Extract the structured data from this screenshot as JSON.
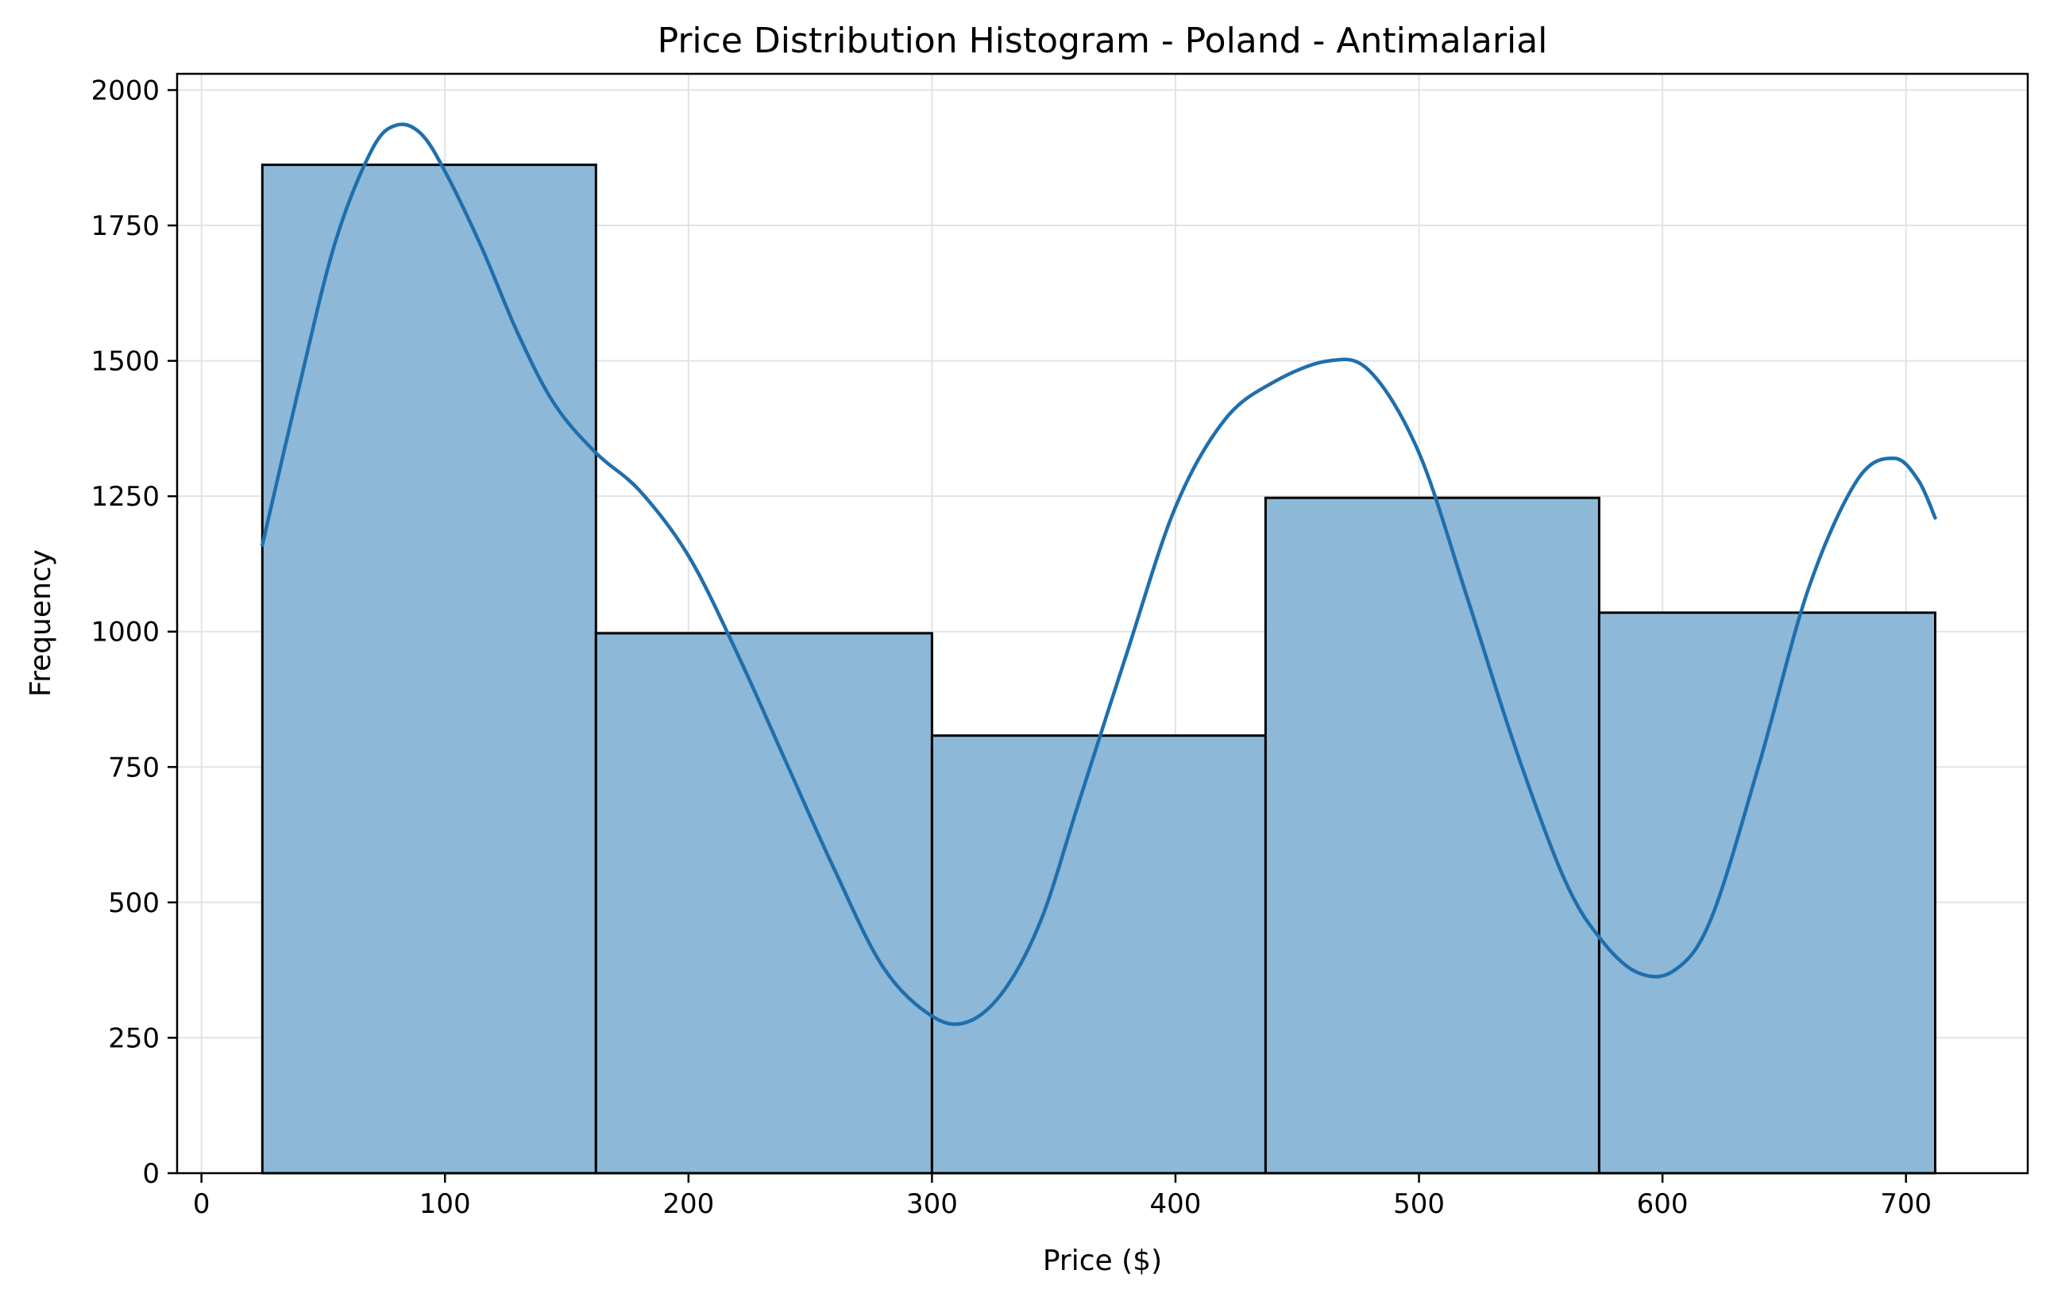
{
  "chart_data": {
    "type": "bar",
    "title": "Price Distribution Histogram - Poland - Antimalarial",
    "xlabel": "Price ($)",
    "ylabel": "Frequency",
    "xlim": [
      -10,
      750
    ],
    "ylim": [
      0,
      2030
    ],
    "grid": true,
    "x_ticks": [
      0,
      100,
      200,
      300,
      400,
      500,
      600,
      700
    ],
    "y_ticks": [
      0,
      250,
      500,
      750,
      1000,
      1250,
      1500,
      1750,
      2000
    ],
    "bins": [
      {
        "start": 25,
        "end": 162,
        "count": 1862
      },
      {
        "start": 162,
        "end": 300,
        "count": 997
      },
      {
        "start": 300,
        "end": 437,
        "count": 808
      },
      {
        "start": 437,
        "end": 574,
        "count": 1247
      },
      {
        "start": 574,
        "end": 712,
        "count": 1035
      }
    ],
    "kde": {
      "x": [
        25,
        40,
        55,
        70,
        80,
        90,
        100,
        115,
        130,
        145,
        162,
        180,
        200,
        220,
        240,
        260,
        280,
        300,
        315,
        330,
        345,
        360,
        380,
        400,
        420,
        440,
        463,
        480,
        500,
        520,
        540,
        560,
        575,
        590,
        605,
        620,
        640,
        660,
        680,
        695,
        705,
        712
      ],
      "y": [
        1160,
        1450,
        1720,
        1890,
        1935,
        1920,
        1850,
        1710,
        1550,
        1420,
        1330,
        1260,
        1140,
        960,
        760,
        560,
        380,
        290,
        280,
        340,
        470,
        680,
        960,
        1230,
        1390,
        1460,
        1500,
        1480,
        1330,
        1060,
        780,
        540,
        430,
        370,
        375,
        470,
        760,
        1080,
        1280,
        1320,
        1280,
        1210
      ]
    },
    "colors": {
      "bar_fill": "#8db8d8",
      "bar_edge": "#000000",
      "kde_line": "#1f6fad",
      "grid": "#e3e3e3"
    }
  }
}
